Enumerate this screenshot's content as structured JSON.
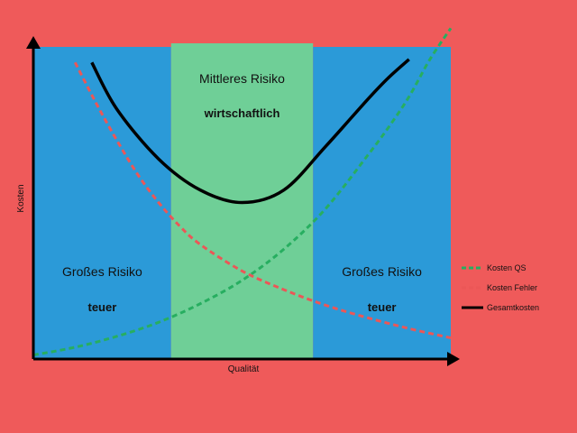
{
  "chart_data": {
    "type": "line",
    "title": "",
    "xlabel": "Qualität",
    "ylabel": "Kosten",
    "xlim": [
      0,
      10
    ],
    "ylim": [
      0,
      10
    ],
    "grid": false,
    "legend_position": "right",
    "zones": [
      {
        "name": "low-quality-zone",
        "x_range": [
          0,
          3.3
        ],
        "label": "Großes Risiko",
        "sublabel": "teuer",
        "color": "#2b9ad8"
      },
      {
        "name": "mid-zone",
        "x_range": [
          3.3,
          6.7
        ],
        "label": "Mittleres Risiko",
        "sublabel": "wirtschaftlich",
        "color": "#6fcf97"
      },
      {
        "name": "high-quality-zone",
        "x_range": [
          6.7,
          10
        ],
        "label": "Großes Risiko",
        "sublabel": "teuer",
        "color": "#2b9ad8"
      }
    ],
    "series": [
      {
        "name": "Kosten QS",
        "color": "#27ae60",
        "dash": true,
        "x": [
          0,
          1,
          2,
          3,
          4,
          5,
          6,
          7,
          8,
          8.5,
          9,
          9.5,
          10
        ],
        "y": [
          0.1,
          0.35,
          0.7,
          1.15,
          1.75,
          2.5,
          3.5,
          4.8,
          6.5,
          7.4,
          8.4,
          9.6,
          10.6
        ]
      },
      {
        "name": "Kosten Fehler",
        "color": "#eb5757",
        "dash": true,
        "x": [
          1,
          1.5,
          2,
          2.5,
          3,
          3.5,
          4,
          5,
          6,
          7,
          8,
          9,
          10
        ],
        "y": [
          9.5,
          8.2,
          7.0,
          5.9,
          5.0,
          4.25,
          3.65,
          2.8,
          2.2,
          1.7,
          1.3,
          0.95,
          0.65
        ]
      },
      {
        "name": "Gesamtkosten",
        "color": "#000000",
        "dash": false,
        "x": [
          1.4,
          2,
          3,
          4,
          5,
          6,
          7,
          8,
          8.5,
          9
        ],
        "y": [
          9.5,
          8.0,
          6.4,
          5.4,
          5.0,
          5.4,
          6.8,
          8.3,
          9.0,
          9.6
        ]
      }
    ]
  }
}
